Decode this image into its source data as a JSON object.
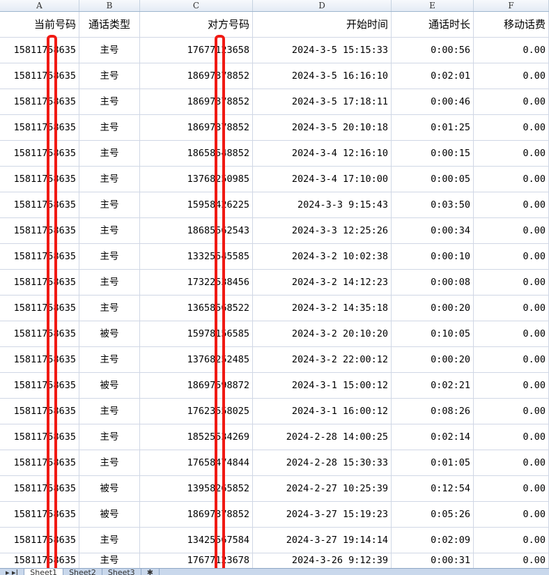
{
  "columns": [
    "A",
    "B",
    "C",
    "D",
    "E",
    "F"
  ],
  "headers": [
    "当前号码",
    "通话类型",
    "对方号码",
    "开始时间",
    "通话时长",
    "移动话费"
  ],
  "rows": [
    [
      "15811758635",
      "主号",
      "17677123658",
      "2024-3-5 15:15:33",
      "0:00:56",
      "0.00"
    ],
    [
      "15811758635",
      "主号",
      "18697378852",
      "2024-3-5 16:16:10",
      "0:02:01",
      "0.00"
    ],
    [
      "15811758635",
      "主号",
      "18697378852",
      "2024-3-5 17:18:11",
      "0:00:46",
      "0.00"
    ],
    [
      "15811758635",
      "主号",
      "18697378852",
      "2024-3-5 20:10:18",
      "0:01:25",
      "0.00"
    ],
    [
      "15811758635",
      "主号",
      "18658548852",
      "2024-3-4 12:16:10",
      "0:00:15",
      "0.00"
    ],
    [
      "15811758635",
      "主号",
      "13768250985",
      "2024-3-4 17:10:00",
      "0:00:05",
      "0.00"
    ],
    [
      "15811758635",
      "主号",
      "15958426225",
      "2024-3-3 9:15:43",
      "0:03:50",
      "0.00"
    ],
    [
      "15811758635",
      "主号",
      "18685562543",
      "2024-3-3 12:25:26",
      "0:00:34",
      "0.00"
    ],
    [
      "15811758635",
      "主号",
      "13325545585",
      "2024-3-2 10:02:38",
      "0:00:10",
      "0.00"
    ],
    [
      "15811758635",
      "主号",
      "17322538456",
      "2024-3-2 14:12:23",
      "0:00:08",
      "0.00"
    ],
    [
      "15811758635",
      "主号",
      "13658568522",
      "2024-3-2 14:35:18",
      "0:00:20",
      "0.00"
    ],
    [
      "15811758635",
      "被号",
      "15978156585",
      "2024-3-2 20:10:20",
      "0:10:05",
      "0.00"
    ],
    [
      "15811758635",
      "主号",
      "13768252485",
      "2024-3-2 22:00:12",
      "0:00:20",
      "0.00"
    ],
    [
      "15811758635",
      "被号",
      "18697598872",
      "2024-3-1 15:00:12",
      "0:02:21",
      "0.00"
    ],
    [
      "15811758635",
      "主号",
      "17623558025",
      "2024-3-1 16:00:12",
      "0:08:26",
      "0.00"
    ],
    [
      "15811758635",
      "主号",
      "18525534269",
      "2024-2-28 14:00:25",
      "0:02:14",
      "0.00"
    ],
    [
      "15811758635",
      "主号",
      "17658474844",
      "2024-2-28 15:30:33",
      "0:01:05",
      "0.00"
    ],
    [
      "15811758635",
      "被号",
      "13958265852",
      "2024-2-27 10:25:39",
      "0:12:54",
      "0.00"
    ],
    [
      "15811758635",
      "被号",
      "18697378852",
      "2024-3-27 15:19:23",
      "0:05:26",
      "0.00"
    ],
    [
      "15811758635",
      "主号",
      "13425567584",
      "2024-3-27 19:14:14",
      "0:02:09",
      "0.00"
    ],
    [
      "15811758635",
      "主号",
      "17677123678",
      "2024-3-26 9:12:39",
      "0:00:31",
      "0.00"
    ]
  ],
  "sheet_tabs": [
    "Sheet1",
    "Sheet2",
    "Sheet3"
  ],
  "redaction_color": "#f01a14"
}
